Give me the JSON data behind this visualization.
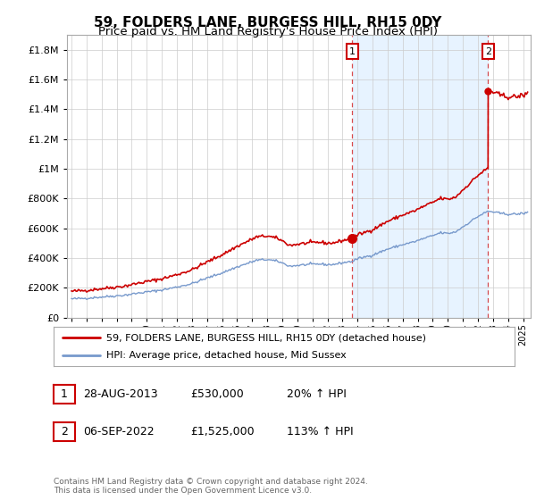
{
  "title": "59, FOLDERS LANE, BURGESS HILL, RH15 0DY",
  "subtitle": "Price paid vs. HM Land Registry's House Price Index (HPI)",
  "ytick_values": [
    0,
    200000,
    400000,
    600000,
    800000,
    1000000,
    1200000,
    1400000,
    1600000,
    1800000
  ],
  "ylim": [
    0,
    1900000
  ],
  "xlim_start": 1994.7,
  "xlim_end": 2025.5,
  "xticks": [
    1995,
    1996,
    1997,
    1998,
    1999,
    2000,
    2001,
    2002,
    2003,
    2004,
    2005,
    2006,
    2007,
    2008,
    2009,
    2010,
    2011,
    2012,
    2013,
    2014,
    2015,
    2016,
    2017,
    2018,
    2019,
    2020,
    2021,
    2022,
    2023,
    2024,
    2025
  ],
  "hpi_color": "#7799cc",
  "hpi_shade_color": "#ddeeff",
  "price_color": "#cc0000",
  "sale1_date": 2013.66,
  "sale1_price": 530000,
  "sale2_date": 2022.68,
  "sale2_price": 1525000,
  "legend_line1": "59, FOLDERS LANE, BURGESS HILL, RH15 0DY (detached house)",
  "legend_line2": "HPI: Average price, detached house, Mid Sussex",
  "footnote": "Contains HM Land Registry data © Crown copyright and database right 2024.\nThis data is licensed under the Open Government Licence v3.0.",
  "background_color": "#e8f0f8",
  "plot_bg_color": "#ffffff",
  "grid_color": "#cccccc",
  "title_fontsize": 11,
  "subtitle_fontsize": 9.5
}
